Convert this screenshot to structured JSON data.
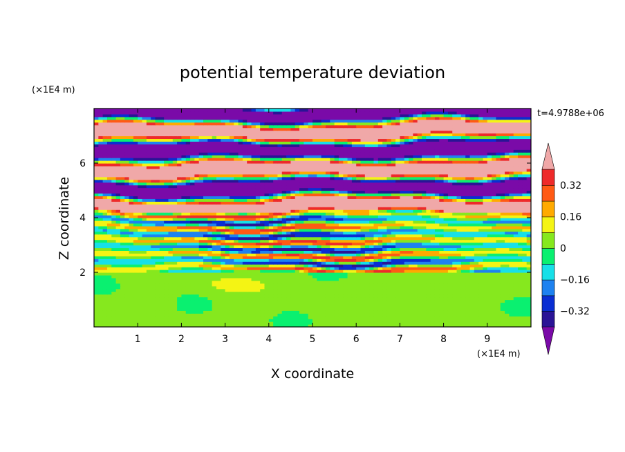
{
  "chart_data": {
    "type": "heatmap",
    "title": "potential temperature deviation",
    "xlabel": "X coordinate",
    "ylabel": "Z coordinate",
    "x_unit": "(×1E4 m)",
    "y_unit": "(×1E4 m)",
    "time_label": "t=4.9788e+06",
    "xlim": [
      0,
      10
    ],
    "ylim": [
      0,
      8
    ],
    "x_ticks": [
      1,
      2,
      3,
      4,
      5,
      6,
      7,
      8,
      9
    ],
    "y_ticks": [
      2,
      4,
      6
    ],
    "x_tick_labels": [
      "1",
      "2",
      "3",
      "4",
      "5",
      "6",
      "7",
      "8",
      "9"
    ],
    "y_tick_labels": [
      "2",
      "4",
      "6"
    ],
    "colorbar": {
      "levels": [
        -0.4,
        -0.32,
        -0.24,
        -0.16,
        -0.08,
        0,
        0.08,
        0.16,
        0.24,
        0.32,
        0.4
      ],
      "colors": [
        "#7a0aa8",
        "#2a1496",
        "#0a2ed2",
        "#1e82f0",
        "#17e0e8",
        "#0af070",
        "#86e81e",
        "#f4f414",
        "#ffaa00",
        "#ff5a14",
        "#ee2a2a",
        "#f0a8a8"
      ],
      "tick_values": [
        0.32,
        0.16,
        0,
        -0.16,
        -0.32
      ],
      "tick_labels": [
        "0.32",
        "0.16",
        "0",
        "−0.16",
        "−0.32"
      ],
      "extend": "both"
    },
    "field_regions": [
      {
        "z_range": [
          0,
          2.0
        ],
        "description": "near-zero deviation (0 to 0.08) with scattered patches of 0.08–0.16 and small 0.16–0.24 spots"
      },
      {
        "z_range": [
          2.0,
          4.2
        ],
        "description": "thin interleaved layers spanning −0.32 to 0.32"
      },
      {
        "z_range": [
          4.2,
          8.0
        ],
        "description": "alternating bands below −0.4 and above 0.4 with thin transition layers"
      }
    ]
  }
}
